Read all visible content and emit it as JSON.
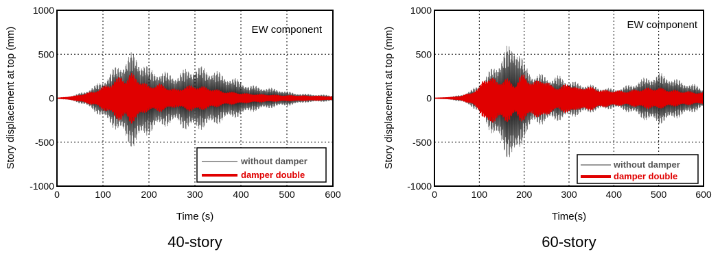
{
  "colors": {
    "without_damper": "#333333",
    "damper_double": "#e00000",
    "grid": "#000000"
  },
  "chart_data": [
    {
      "type": "line",
      "caption": "40-story",
      "annotation": "EW component",
      "xlabel": "Time (s)",
      "ylabel": "Story displacement at top (mm)",
      "xlim": [
        0,
        600
      ],
      "ylim": [
        -1000,
        1000
      ],
      "xticks": [
        0,
        100,
        200,
        300,
        400,
        500,
        600
      ],
      "yticks": [
        -1000,
        -500,
        0,
        500,
        1000
      ],
      "grid": true,
      "legend_position": "bottom-right",
      "series": [
        {
          "name": "without damper",
          "kind": "envelope",
          "x": [
            0,
            20,
            40,
            60,
            80,
            100,
            120,
            140,
            150,
            160,
            170,
            180,
            190,
            200,
            220,
            240,
            260,
            280,
            300,
            320,
            340,
            360,
            380,
            400,
            420,
            440,
            460,
            480,
            500,
            520,
            540,
            560,
            580,
            600
          ],
          "max": [
            0,
            15,
            40,
            80,
            140,
            210,
            330,
            430,
            470,
            520,
            530,
            470,
            420,
            350,
            330,
            300,
            280,
            340,
            380,
            360,
            340,
            280,
            250,
            200,
            150,
            140,
            120,
            110,
            80,
            60,
            50,
            45,
            40,
            30
          ],
          "min": [
            0,
            -15,
            -40,
            -80,
            -150,
            -240,
            -330,
            -420,
            -520,
            -560,
            -580,
            -520,
            -460,
            -420,
            -360,
            -320,
            -300,
            -370,
            -380,
            -350,
            -330,
            -270,
            -240,
            -210,
            -160,
            -140,
            -120,
            -100,
            -90,
            -70,
            -50,
            -45,
            -40,
            -30
          ]
        },
        {
          "name": "damper double",
          "kind": "envelope",
          "x": [
            0,
            20,
            40,
            60,
            80,
            100,
            120,
            140,
            150,
            160,
            170,
            180,
            190,
            200,
            220,
            240,
            260,
            280,
            300,
            320,
            340,
            360,
            380,
            400,
            420,
            440,
            460,
            480,
            500,
            520,
            540,
            560,
            580,
            600
          ],
          "max": [
            0,
            10,
            25,
            50,
            80,
            130,
            190,
            260,
            230,
            290,
            260,
            220,
            180,
            140,
            170,
            130,
            100,
            140,
            150,
            130,
            110,
            80,
            70,
            60,
            50,
            45,
            40,
            35,
            30,
            30,
            25,
            25,
            20,
            15
          ],
          "min": [
            0,
            -10,
            -25,
            -50,
            -80,
            -130,
            -200,
            -270,
            -230,
            -300,
            -260,
            -220,
            -170,
            -140,
            -160,
            -130,
            -100,
            -140,
            -150,
            -130,
            -110,
            -80,
            -70,
            -60,
            -50,
            -45,
            -40,
            -35,
            -30,
            -30,
            -25,
            -25,
            -20,
            -15
          ]
        }
      ]
    },
    {
      "type": "line",
      "caption": "60-story",
      "annotation": "EW component",
      "xlabel": "Time(s)",
      "ylabel": "Story displacement at top (mm)",
      "xlim": [
        0,
        600
      ],
      "ylim": [
        -1000,
        1000
      ],
      "xticks": [
        0,
        100,
        200,
        300,
        400,
        500,
        600
      ],
      "yticks": [
        -1000,
        -500,
        0,
        500,
        1000
      ],
      "grid": true,
      "legend_position": "bottom-right",
      "series": [
        {
          "name": "without damper",
          "kind": "envelope",
          "x": [
            0,
            20,
            40,
            60,
            80,
            100,
            120,
            140,
            160,
            180,
            190,
            200,
            220,
            240,
            260,
            280,
            300,
            320,
            340,
            360,
            380,
            400,
            420,
            440,
            460,
            480,
            500,
            520,
            540,
            560,
            580,
            600
          ],
          "max": [
            0,
            10,
            20,
            40,
            90,
            160,
            300,
            430,
            590,
            670,
            560,
            400,
            290,
            280,
            250,
            260,
            210,
            180,
            170,
            140,
            120,
            110,
            130,
            170,
            220,
            260,
            290,
            270,
            220,
            190,
            160,
            110
          ],
          "min": [
            0,
            -10,
            -20,
            -40,
            -90,
            -170,
            -350,
            -500,
            -680,
            -760,
            -650,
            -450,
            -320,
            -300,
            -270,
            -260,
            -230,
            -200,
            -180,
            -150,
            -130,
            -120,
            -140,
            -180,
            -230,
            -280,
            -300,
            -280,
            -230,
            -200,
            -160,
            -110
          ]
        },
        {
          "name": "damper double",
          "kind": "envelope",
          "x": [
            0,
            20,
            40,
            60,
            80,
            100,
            110,
            120,
            140,
            160,
            180,
            190,
            200,
            220,
            240,
            260,
            280,
            300,
            320,
            340,
            360,
            380,
            400,
            420,
            440,
            460,
            480,
            500,
            520,
            540,
            560,
            580,
            600
          ],
          "max": [
            0,
            5,
            10,
            25,
            60,
            120,
            240,
            260,
            200,
            230,
            160,
            250,
            280,
            180,
            240,
            150,
            130,
            180,
            110,
            140,
            110,
            90,
            90,
            80,
            90,
            110,
            120,
            120,
            100,
            90,
            80,
            70,
            60
          ],
          "min": [
            0,
            -5,
            -10,
            -25,
            -60,
            -140,
            -260,
            -320,
            -240,
            -280,
            -200,
            -260,
            -260,
            -190,
            -250,
            -160,
            -140,
            -190,
            -120,
            -150,
            -120,
            -100,
            -90,
            -80,
            -90,
            -110,
            -120,
            -120,
            -100,
            -90,
            -80,
            -70,
            -60
          ]
        }
      ]
    }
  ]
}
